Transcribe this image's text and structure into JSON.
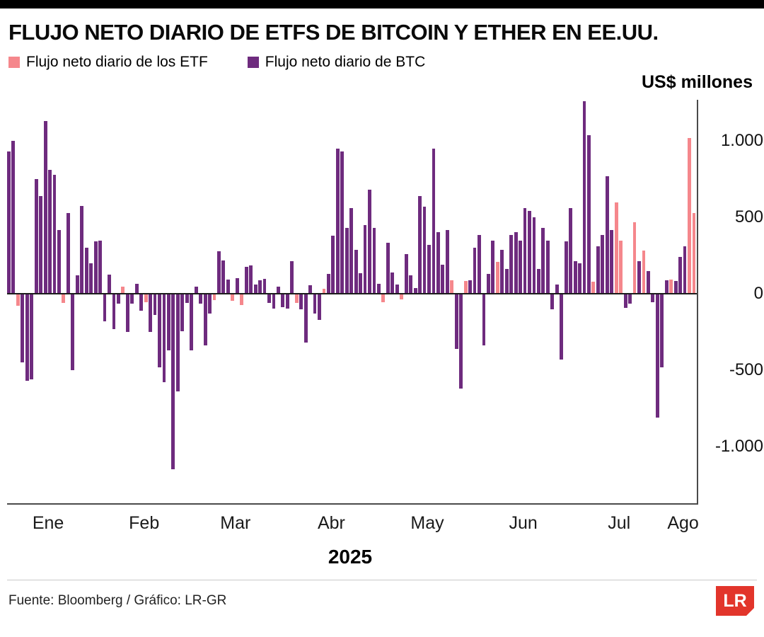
{
  "header": {
    "title": "FLUJO NETO DIARIO DE ETFS DE BITCOIN Y ETHER EN EE.UU."
  },
  "legend": [
    {
      "label": "Flujo neto diario de los ETF",
      "color": "#f5878c"
    },
    {
      "label": "Flujo neto diario de BTC",
      "color": "#6e2b7e"
    }
  ],
  "units_label": "US$ millones",
  "year_label": "2025",
  "footer": {
    "source": "Fuente: Bloomberg / Gráfico: LR-GR",
    "logo": "LR"
  },
  "chart_data": {
    "type": "bar",
    "title": "Flujo neto diario de ETFs de Bitcoin y Ether en EE.UU.",
    "ylabel": "US$ millones",
    "xlabel": "2025",
    "ylim": [
      -1370,
      1270
    ],
    "yticks": [
      1000,
      500,
      0,
      -500,
      -1000
    ],
    "ytick_labels": [
      "1.000",
      "500",
      "0",
      "-500",
      "-1.000"
    ],
    "grid": "zero-line-only",
    "legend_position": "top-left",
    "series": [
      {
        "name": "Flujo neto diario de los ETF",
        "color": "#f5878c"
      },
      {
        "name": "Flujo neto diario de BTC",
        "color": "#6e2b7e"
      }
    ],
    "months": [
      {
        "label": "Ene",
        "center": 9
      },
      {
        "label": "Feb",
        "center": 30
      },
      {
        "label": "Mar",
        "center": 50
      },
      {
        "label": "Abr",
        "center": 71
      },
      {
        "label": "May",
        "center": 92
      },
      {
        "label": "Jun",
        "center": 113
      },
      {
        "label": "Jul",
        "center": 134
      },
      {
        "label": "Ago",
        "center": 148
      }
    ],
    "bars_format": "[value_usd_millions, series_index]",
    "bars": [
      [
        930,
        1
      ],
      [
        1000,
        1
      ],
      [
        -80,
        0
      ],
      [
        -450,
        1
      ],
      [
        -570,
        1
      ],
      [
        -560,
        1
      ],
      [
        750,
        1
      ],
      [
        640,
        1
      ],
      [
        1130,
        1
      ],
      [
        810,
        1
      ],
      [
        780,
        1
      ],
      [
        420,
        1
      ],
      [
        -60,
        0
      ],
      [
        530,
        1
      ],
      [
        -500,
        1
      ],
      [
        120,
        1
      ],
      [
        575,
        1
      ],
      [
        300,
        1
      ],
      [
        200,
        1
      ],
      [
        345,
        1
      ],
      [
        350,
        1
      ],
      [
        -180,
        1
      ],
      [
        125,
        1
      ],
      [
        -230,
        1
      ],
      [
        -65,
        1
      ],
      [
        45,
        0
      ],
      [
        -250,
        1
      ],
      [
        -65,
        1
      ],
      [
        65,
        1
      ],
      [
        -110,
        1
      ],
      [
        -55,
        0
      ],
      [
        -250,
        1
      ],
      [
        -140,
        1
      ],
      [
        -480,
        1
      ],
      [
        -580,
        1
      ],
      [
        -370,
        1
      ],
      [
        -1150,
        1
      ],
      [
        -640,
        1
      ],
      [
        -245,
        1
      ],
      [
        -60,
        1
      ],
      [
        -370,
        1
      ],
      [
        45,
        1
      ],
      [
        -65,
        1
      ],
      [
        -335,
        1
      ],
      [
        -130,
        1
      ],
      [
        -40,
        0
      ],
      [
        280,
        1
      ],
      [
        220,
        1
      ],
      [
        95,
        1
      ],
      [
        -45,
        0
      ],
      [
        105,
        1
      ],
      [
        -75,
        0
      ],
      [
        175,
        1
      ],
      [
        185,
        1
      ],
      [
        60,
        1
      ],
      [
        90,
        1
      ],
      [
        100,
        1
      ],
      [
        -60,
        1
      ],
      [
        -95,
        1
      ],
      [
        45,
        1
      ],
      [
        -85,
        1
      ],
      [
        -95,
        1
      ],
      [
        215,
        1
      ],
      [
        -60,
        0
      ],
      [
        -100,
        1
      ],
      [
        -320,
        1
      ],
      [
        55,
        1
      ],
      [
        -130,
        1
      ],
      [
        -170,
        1
      ],
      [
        35,
        0
      ],
      [
        130,
        1
      ],
      [
        380,
        1
      ],
      [
        950,
        1
      ],
      [
        930,
        1
      ],
      [
        430,
        1
      ],
      [
        560,
        1
      ],
      [
        290,
        1
      ],
      [
        135,
        1
      ],
      [
        450,
        1
      ],
      [
        680,
        1
      ],
      [
        430,
        1
      ],
      [
        65,
        1
      ],
      [
        -55,
        0
      ],
      [
        335,
        1
      ],
      [
        140,
        1
      ],
      [
        60,
        1
      ],
      [
        -35,
        0
      ],
      [
        260,
        1
      ],
      [
        120,
        1
      ],
      [
        40,
        1
      ],
      [
        640,
        1
      ],
      [
        570,
        1
      ],
      [
        320,
        1
      ],
      [
        950,
        1
      ],
      [
        405,
        1
      ],
      [
        190,
        1
      ],
      [
        420,
        1
      ],
      [
        90,
        0
      ],
      [
        -360,
        1
      ],
      [
        -620,
        1
      ],
      [
        85,
        0
      ],
      [
        90,
        1
      ],
      [
        300,
        1
      ],
      [
        385,
        1
      ],
      [
        -335,
        1
      ],
      [
        130,
        1
      ],
      [
        350,
        1
      ],
      [
        210,
        0
      ],
      [
        290,
        1
      ],
      [
        165,
        1
      ],
      [
        385,
        1
      ],
      [
        405,
        1
      ],
      [
        350,
        1
      ],
      [
        560,
        1
      ],
      [
        545,
        1
      ],
      [
        500,
        1
      ],
      [
        165,
        1
      ],
      [
        430,
        1
      ],
      [
        350,
        1
      ],
      [
        -100,
        1
      ],
      [
        60,
        1
      ],
      [
        -430,
        1
      ],
      [
        345,
        1
      ],
      [
        560,
        1
      ],
      [
        215,
        1
      ],
      [
        200,
        1
      ],
      [
        1260,
        1
      ],
      [
        1040,
        1
      ],
      [
        80,
        0
      ],
      [
        310,
        1
      ],
      [
        385,
        1
      ],
      [
        770,
        1
      ],
      [
        420,
        1
      ],
      [
        600,
        0
      ],
      [
        350,
        0
      ],
      [
        -90,
        1
      ],
      [
        -65,
        1
      ],
      [
        470,
        0
      ],
      [
        215,
        1
      ],
      [
        285,
        0
      ],
      [
        150,
        1
      ],
      [
        -55,
        1
      ],
      [
        -810,
        1
      ],
      [
        -480,
        1
      ],
      [
        90,
        1
      ],
      [
        95,
        0
      ],
      [
        85,
        1
      ],
      [
        240,
        1
      ],
      [
        310,
        1
      ],
      [
        1020,
        0
      ],
      [
        530,
        0
      ]
    ]
  }
}
